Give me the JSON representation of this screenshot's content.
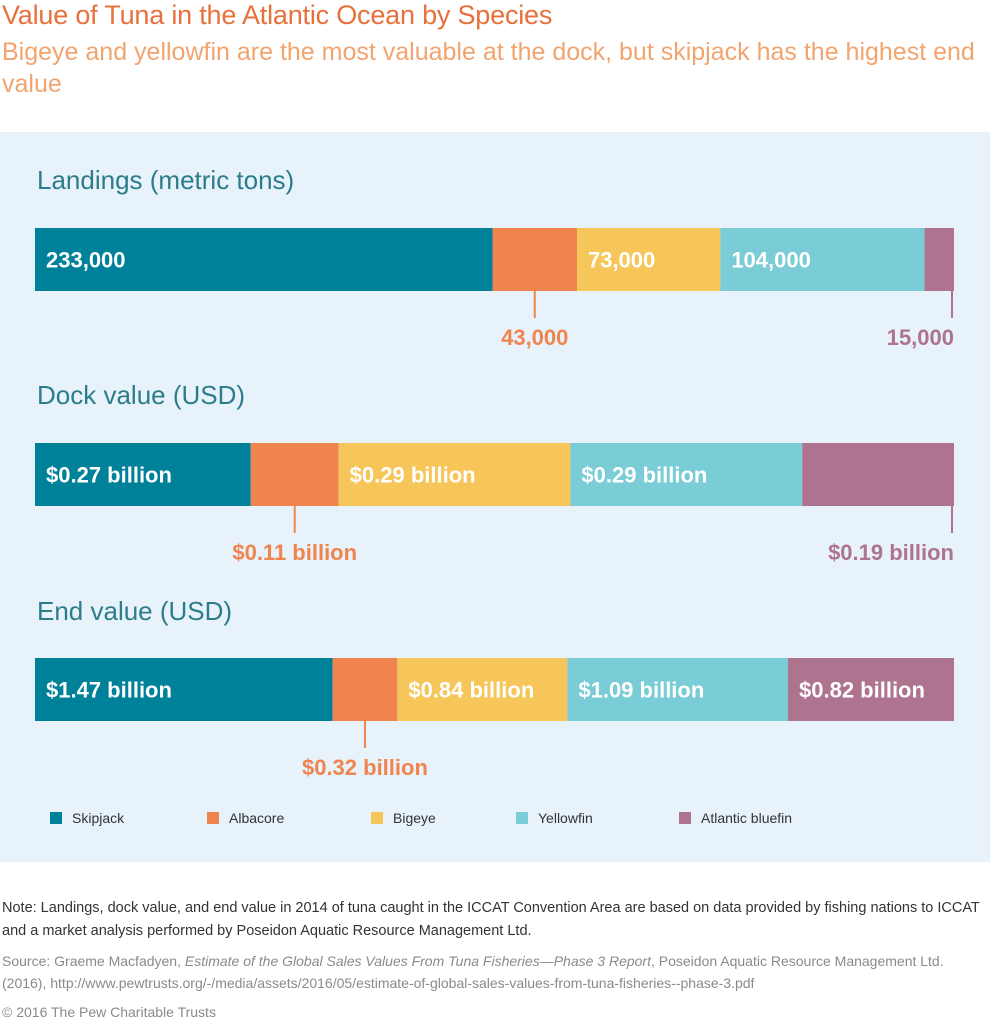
{
  "title": "Value of Tuna in the Atlantic Ocean by Species",
  "subtitle": "Bigeye and yellowfin are the most valuable at the dock, but skipjack has the highest end value",
  "note": "Note: Landings, dock value, and end value in 2014 of tuna caught in the ICCAT Convention Area are based on data provided by fishing nations to ICCAT and a market analysis performed by Poseidon Aquatic Resource Management Ltd.",
  "source": {
    "prefix": "Source: Graeme Macfadyen, ",
    "report": "Estimate of the Global Sales Values From Tuna Fisheries—Phase 3 Report",
    "suffix": ", Poseidon Aquatic Resource Management Ltd. (2016), http://www.pewtrusts.org/-/media/assets/2016/05/estimate-of-global-sales-values-from-tuna-fisheries--phase-3.pdf"
  },
  "copyright": "© 2016 The Pew Charitable Trusts",
  "colors": {
    "skipjack": "#00819a",
    "albacore": "#f0844e",
    "bigeye": "#f7c65a",
    "yellowfin": "#7accd6",
    "bluefin": "#ae738f"
  },
  "legend": [
    {
      "name": "Skipjack",
      "color": "#00819a"
    },
    {
      "name": "Albacore",
      "color": "#f0844e"
    },
    {
      "name": "Bigeye",
      "color": "#f7c65a"
    },
    {
      "name": "Yellowfin",
      "color": "#7accd6"
    },
    {
      "name": "Atlantic bluefin",
      "color": "#ae738f"
    }
  ],
  "chart_data": {
    "type": "bar",
    "stacked": true,
    "orientation": "horizontal",
    "normalized": true,
    "categories": [
      "Landings (metric tons)",
      "Dock value (USD)",
      "End value (USD)"
    ],
    "series": [
      {
        "name": "Skipjack",
        "values": [
          233000,
          0.27,
          1.47
        ],
        "labels": [
          "233,000",
          "$0.27 billion",
          "$1.47 billion"
        ]
      },
      {
        "name": "Albacore",
        "values": [
          43000,
          0.11,
          0.32
        ],
        "labels": [
          "43,000",
          "$0.11 billion",
          "$0.32 billion"
        ]
      },
      {
        "name": "Bigeye",
        "values": [
          73000,
          0.29,
          0.84
        ],
        "labels": [
          "73,000",
          "$0.29 billion",
          "$0.84 billion"
        ]
      },
      {
        "name": "Yellowfin",
        "values": [
          104000,
          0.29,
          1.09
        ],
        "labels": [
          "104,000",
          "$0.29 billion",
          "$1.09 billion"
        ]
      },
      {
        "name": "Atlantic bluefin",
        "values": [
          15000,
          0.19,
          0.82
        ],
        "labels": [
          "15,000",
          "$0.19 billion",
          "$0.82 billion"
        ]
      }
    ]
  }
}
